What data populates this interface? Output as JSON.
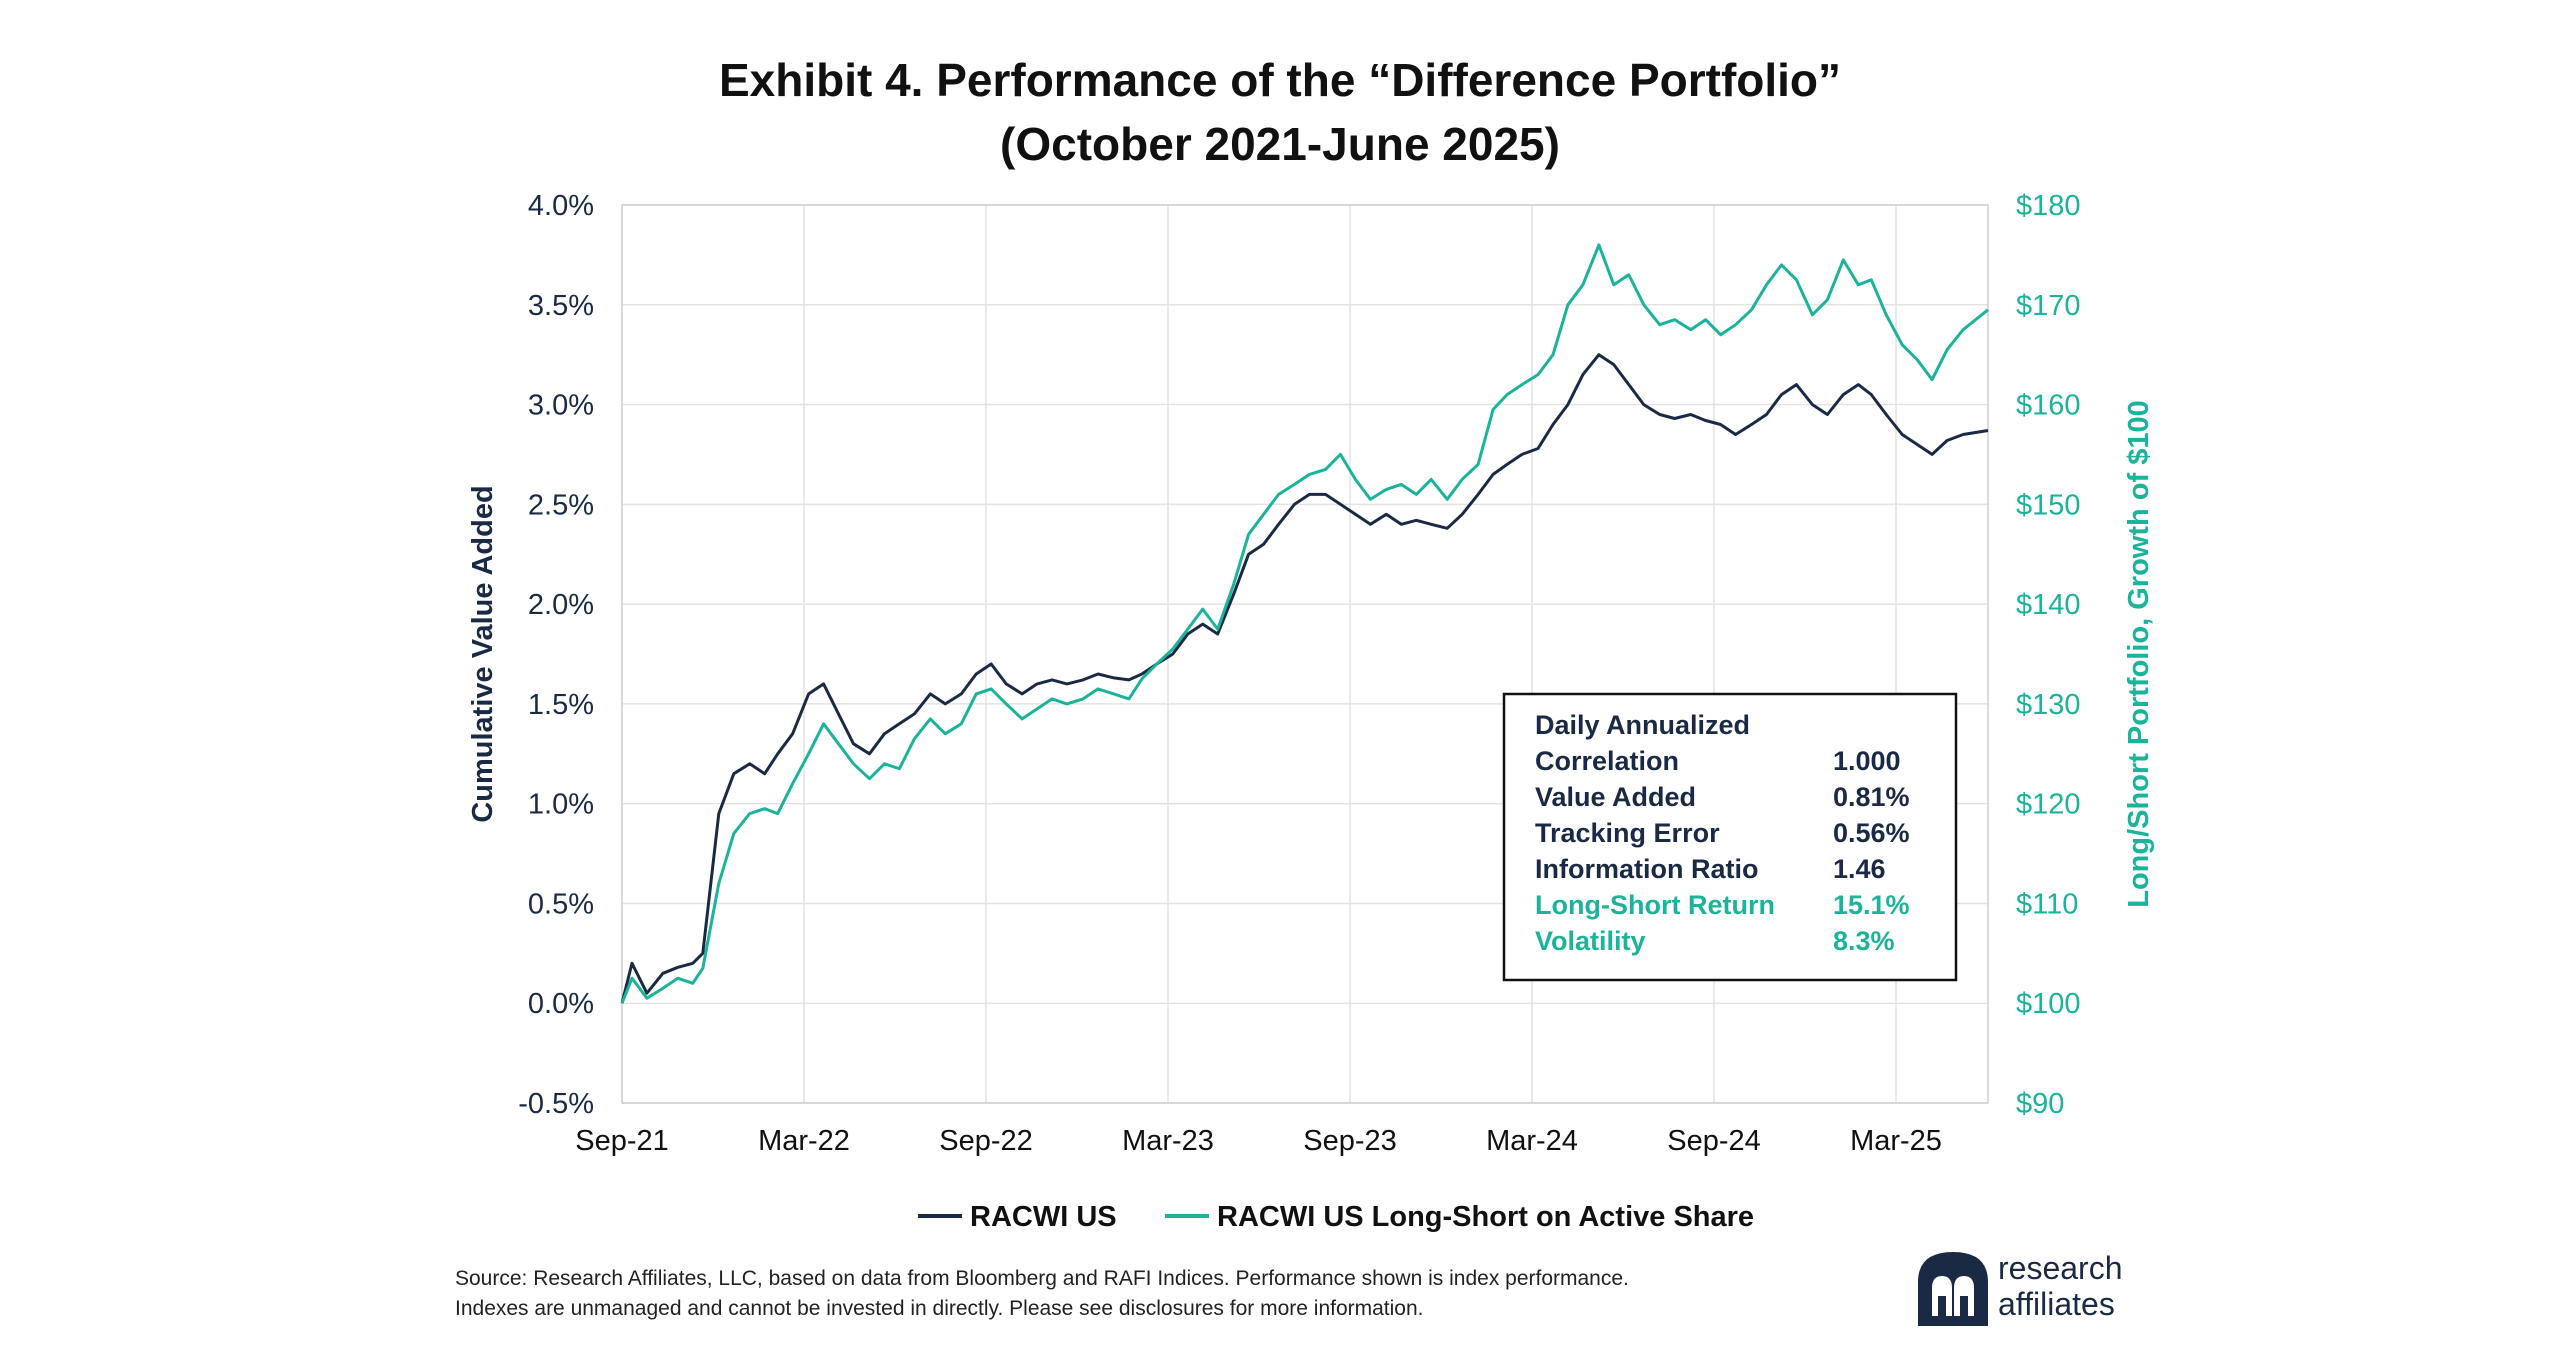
{
  "title_line1": "Exhibit 4. Performance of the “Difference Portfolio”",
  "title_line2": "(October 2021-June 2025)",
  "chart_data": {
    "type": "line",
    "y_left": {
      "label": "Cumulative Value Added",
      "range": [
        -0.5,
        4.0
      ],
      "ticks": [
        "-0.5%",
        "0.0%",
        "0.5%",
        "1.0%",
        "1.5%",
        "2.0%",
        "2.5%",
        "3.0%",
        "3.5%",
        "4.0%"
      ]
    },
    "y_right": {
      "label": "Long/Short Portfolio, Growth of $100",
      "range": [
        90,
        180
      ],
      "ticks": [
        "$90",
        "$100",
        "$110",
        "$120",
        "$130",
        "$140",
        "$150",
        "$160",
        "$170",
        "$180"
      ]
    },
    "x": {
      "range": [
        "2021-09-30",
        "2025-06-30"
      ],
      "ticks": [
        "Sep-21",
        "Mar-22",
        "Sep-22",
        "Mar-23",
        "Sep-23",
        "Mar-24",
        "Sep-24",
        "Mar-25"
      ]
    },
    "grid": true,
    "legend_placement": "bottom-center",
    "series": [
      {
        "name": "RACWI US",
        "axis": "left",
        "color": "#1b2a44",
        "points": [
          [
            "2021-09-30",
            0.0
          ],
          [
            "2021-10-10",
            0.2
          ],
          [
            "2021-10-25",
            0.05
          ],
          [
            "2021-11-10",
            0.15
          ],
          [
            "2021-11-25",
            0.18
          ],
          [
            "2021-12-10",
            0.2
          ],
          [
            "2021-12-20",
            0.25
          ],
          [
            "2022-01-05",
            0.95
          ],
          [
            "2022-01-20",
            1.15
          ],
          [
            "2022-02-05",
            1.2
          ],
          [
            "2022-02-20",
            1.15
          ],
          [
            "2022-03-05",
            1.25
          ],
          [
            "2022-03-20",
            1.35
          ],
          [
            "2022-04-05",
            1.55
          ],
          [
            "2022-04-20",
            1.6
          ],
          [
            "2022-05-05",
            1.45
          ],
          [
            "2022-05-20",
            1.3
          ],
          [
            "2022-06-05",
            1.25
          ],
          [
            "2022-06-20",
            1.35
          ],
          [
            "2022-07-05",
            1.4
          ],
          [
            "2022-07-20",
            1.45
          ],
          [
            "2022-08-05",
            1.55
          ],
          [
            "2022-08-20",
            1.5
          ],
          [
            "2022-09-05",
            1.55
          ],
          [
            "2022-09-20",
            1.65
          ],
          [
            "2022-10-05",
            1.7
          ],
          [
            "2022-10-20",
            1.6
          ],
          [
            "2022-11-05",
            1.55
          ],
          [
            "2022-11-20",
            1.6
          ],
          [
            "2022-12-05",
            1.62
          ],
          [
            "2022-12-20",
            1.6
          ],
          [
            "2023-01-05",
            1.62
          ],
          [
            "2023-01-20",
            1.65
          ],
          [
            "2023-02-05",
            1.63
          ],
          [
            "2023-02-20",
            1.62
          ],
          [
            "2023-03-05",
            1.65
          ],
          [
            "2023-03-20",
            1.7
          ],
          [
            "2023-04-05",
            1.75
          ],
          [
            "2023-04-20",
            1.85
          ],
          [
            "2023-05-05",
            1.9
          ],
          [
            "2023-05-20",
            1.85
          ],
          [
            "2023-06-05",
            2.05
          ],
          [
            "2023-06-20",
            2.25
          ],
          [
            "2023-07-05",
            2.3
          ],
          [
            "2023-07-20",
            2.4
          ],
          [
            "2023-08-05",
            2.5
          ],
          [
            "2023-08-20",
            2.55
          ],
          [
            "2023-09-05",
            2.55
          ],
          [
            "2023-09-20",
            2.5
          ],
          [
            "2023-10-05",
            2.45
          ],
          [
            "2023-10-20",
            2.4
          ],
          [
            "2023-11-05",
            2.45
          ],
          [
            "2023-11-20",
            2.4
          ],
          [
            "2023-12-05",
            2.42
          ],
          [
            "2023-12-20",
            2.4
          ],
          [
            "2024-01-05",
            2.38
          ],
          [
            "2024-01-20",
            2.45
          ],
          [
            "2024-02-05",
            2.55
          ],
          [
            "2024-02-20",
            2.65
          ],
          [
            "2024-03-05",
            2.7
          ],
          [
            "2024-03-20",
            2.75
          ],
          [
            "2024-04-05",
            2.78
          ],
          [
            "2024-04-20",
            2.9
          ],
          [
            "2024-05-05",
            3.0
          ],
          [
            "2024-05-20",
            3.15
          ],
          [
            "2024-06-05",
            3.25
          ],
          [
            "2024-06-20",
            3.2
          ],
          [
            "2024-07-05",
            3.1
          ],
          [
            "2024-07-20",
            3.0
          ],
          [
            "2024-08-05",
            2.95
          ],
          [
            "2024-08-20",
            2.93
          ],
          [
            "2024-09-05",
            2.95
          ],
          [
            "2024-09-20",
            2.92
          ],
          [
            "2024-10-05",
            2.9
          ],
          [
            "2024-10-20",
            2.85
          ],
          [
            "2024-11-05",
            2.9
          ],
          [
            "2024-11-20",
            2.95
          ],
          [
            "2024-12-05",
            3.05
          ],
          [
            "2024-12-20",
            3.1
          ],
          [
            "2025-01-05",
            3.0
          ],
          [
            "2025-01-20",
            2.95
          ],
          [
            "2025-02-05",
            3.05
          ],
          [
            "2025-02-20",
            3.1
          ],
          [
            "2025-03-05",
            3.05
          ],
          [
            "2025-03-20",
            2.95
          ],
          [
            "2025-04-05",
            2.85
          ],
          [
            "2025-04-20",
            2.8
          ],
          [
            "2025-05-05",
            2.75
          ],
          [
            "2025-05-20",
            2.82
          ],
          [
            "2025-06-05",
            2.85
          ],
          [
            "2025-06-30",
            2.87
          ]
        ]
      },
      {
        "name": "RACWI US Long-Short on Active Share",
        "axis": "right",
        "color": "#1bb39a",
        "points": [
          [
            "2021-09-30",
            100.0
          ],
          [
            "2021-10-10",
            102.5
          ],
          [
            "2021-10-25",
            100.5
          ],
          [
            "2021-11-10",
            101.5
          ],
          [
            "2021-11-25",
            102.5
          ],
          [
            "2021-12-10",
            102.0
          ],
          [
            "2021-12-20",
            103.5
          ],
          [
            "2022-01-05",
            112.0
          ],
          [
            "2022-01-20",
            117.0
          ],
          [
            "2022-02-05",
            119.0
          ],
          [
            "2022-02-20",
            119.5
          ],
          [
            "2022-03-05",
            119.0
          ],
          [
            "2022-03-20",
            122.0
          ],
          [
            "2022-04-05",
            125.0
          ],
          [
            "2022-04-20",
            128.0
          ],
          [
            "2022-05-05",
            126.0
          ],
          [
            "2022-05-20",
            124.0
          ],
          [
            "2022-06-05",
            122.5
          ],
          [
            "2022-06-20",
            124.0
          ],
          [
            "2022-07-05",
            123.5
          ],
          [
            "2022-07-20",
            126.5
          ],
          [
            "2022-08-05",
            128.5
          ],
          [
            "2022-08-20",
            127.0
          ],
          [
            "2022-09-05",
            128.0
          ],
          [
            "2022-09-20",
            131.0
          ],
          [
            "2022-10-05",
            131.5
          ],
          [
            "2022-10-20",
            130.0
          ],
          [
            "2022-11-05",
            128.5
          ],
          [
            "2022-11-20",
            129.5
          ],
          [
            "2022-12-05",
            130.5
          ],
          [
            "2022-12-20",
            130.0
          ],
          [
            "2023-01-05",
            130.5
          ],
          [
            "2023-01-20",
            131.5
          ],
          [
            "2023-02-05",
            131.0
          ],
          [
            "2023-02-20",
            130.5
          ],
          [
            "2023-03-05",
            132.5
          ],
          [
            "2023-03-20",
            134.0
          ],
          [
            "2023-04-05",
            135.5
          ],
          [
            "2023-04-20",
            137.5
          ],
          [
            "2023-05-05",
            139.5
          ],
          [
            "2023-05-20",
            137.5
          ],
          [
            "2023-06-05",
            142.0
          ],
          [
            "2023-06-20",
            147.0
          ],
          [
            "2023-07-05",
            149.0
          ],
          [
            "2023-07-20",
            151.0
          ],
          [
            "2023-08-05",
            152.0
          ],
          [
            "2023-08-20",
            153.0
          ],
          [
            "2023-09-05",
            153.5
          ],
          [
            "2023-09-20",
            155.0
          ],
          [
            "2023-10-05",
            152.5
          ],
          [
            "2023-10-20",
            150.5
          ],
          [
            "2023-11-05",
            151.5
          ],
          [
            "2023-11-20",
            152.0
          ],
          [
            "2023-12-05",
            151.0
          ],
          [
            "2023-12-20",
            152.5
          ],
          [
            "2024-01-05",
            150.5
          ],
          [
            "2024-01-20",
            152.5
          ],
          [
            "2024-02-05",
            154.0
          ],
          [
            "2024-02-20",
            159.5
          ],
          [
            "2024-03-05",
            161.0
          ],
          [
            "2024-03-20",
            162.0
          ],
          [
            "2024-04-05",
            163.0
          ],
          [
            "2024-04-20",
            165.0
          ],
          [
            "2024-05-05",
            170.0
          ],
          [
            "2024-05-20",
            172.0
          ],
          [
            "2024-06-05",
            176.0
          ],
          [
            "2024-06-20",
            172.0
          ],
          [
            "2024-07-05",
            173.0
          ],
          [
            "2024-07-20",
            170.0
          ],
          [
            "2024-08-05",
            168.0
          ],
          [
            "2024-08-20",
            168.5
          ],
          [
            "2024-09-05",
            167.5
          ],
          [
            "2024-09-20",
            168.5
          ],
          [
            "2024-10-05",
            167.0
          ],
          [
            "2024-10-20",
            168.0
          ],
          [
            "2024-11-05",
            169.5
          ],
          [
            "2024-11-20",
            172.0
          ],
          [
            "2024-12-05",
            174.0
          ],
          [
            "2024-12-20",
            172.5
          ],
          [
            "2025-01-05",
            169.0
          ],
          [
            "2025-01-20",
            170.5
          ],
          [
            "2025-02-05",
            174.5
          ],
          [
            "2025-02-20",
            172.0
          ],
          [
            "2025-03-05",
            172.5
          ],
          [
            "2025-03-20",
            169.0
          ],
          [
            "2025-04-05",
            166.0
          ],
          [
            "2025-04-20",
            164.5
          ],
          [
            "2025-05-05",
            162.5
          ],
          [
            "2025-05-20",
            165.5
          ],
          [
            "2025-06-05",
            167.5
          ],
          [
            "2025-06-30",
            169.5
          ]
        ]
      }
    ],
    "stats_box": {
      "heading": "Daily Annualized",
      "rows": [
        {
          "label": "Correlation",
          "value": "1.000",
          "color": "#1b2a44"
        },
        {
          "label": "Value Added",
          "value": "0.81%",
          "color": "#1b2a44"
        },
        {
          "label": "Tracking Error",
          "value": "0.56%",
          "color": "#1b2a44"
        },
        {
          "label": "Information Ratio",
          "value": "1.46",
          "color": "#1b2a44"
        },
        {
          "label": "Long-Short Return",
          "value": "15.1%",
          "color": "#1bb39a"
        },
        {
          "label": "Volatility",
          "value": "8.3%",
          "color": "#1bb39a"
        }
      ]
    }
  },
  "source_line1": "Source: Research Affiliates, LLC, based on data from Bloomberg and RAFI Indices. Performance shown is index performance.",
  "source_line2": "Indexes are unmanaged and cannot be invested in directly. Please see disclosures for more information.",
  "logo": {
    "line1": "research",
    "line2": "affiliates",
    "color": "#1b2a44"
  }
}
